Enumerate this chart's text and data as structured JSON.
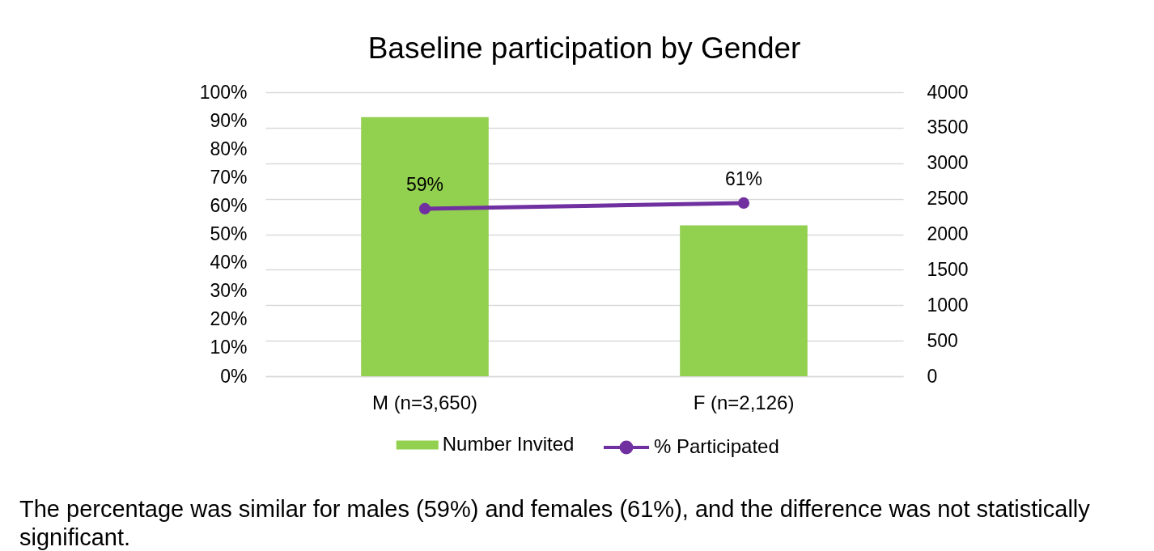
{
  "chart_data": {
    "type": "bar",
    "title": "Baseline participation by Gender",
    "categories": [
      "M (n=3,650)",
      "F (n=2,126)"
    ],
    "series": [
      {
        "name": "Number Invited",
        "color": "#92d050",
        "axis": "y2",
        "values": [
          3650,
          2126
        ]
      },
      {
        "name": "% Participated",
        "type": "line",
        "color": "#7030a0",
        "axis": "y",
        "values": [
          59,
          61
        ],
        "value_labels": [
          "59%",
          "61%"
        ]
      }
    ],
    "marker": "circle",
    "ylim": [
      0,
      100
    ],
    "yticks": [
      {
        "value": 0,
        "label": "0%"
      },
      {
        "value": 10,
        "label": "10%"
      },
      {
        "value": 20,
        "label": "20%"
      },
      {
        "value": 30,
        "label": "30%"
      },
      {
        "value": 40,
        "label": "40%"
      },
      {
        "value": 50,
        "label": "50%"
      },
      {
        "value": 60,
        "label": "60%"
      },
      {
        "value": 70,
        "label": "70%"
      },
      {
        "value": 80,
        "label": "80%"
      },
      {
        "value": 90,
        "label": "90%"
      },
      {
        "value": 100,
        "label": "100%"
      }
    ],
    "y2lim": [
      0,
      4000
    ],
    "y2ticks": [
      0,
      500,
      1000,
      1500,
      2000,
      2500,
      3000,
      3500,
      4000
    ],
    "grid": "y2",
    "legend": "bottom",
    "annotations": [
      "The percentage was similar for males (59%) and females (61%), and the difference was not statistically significant."
    ]
  }
}
